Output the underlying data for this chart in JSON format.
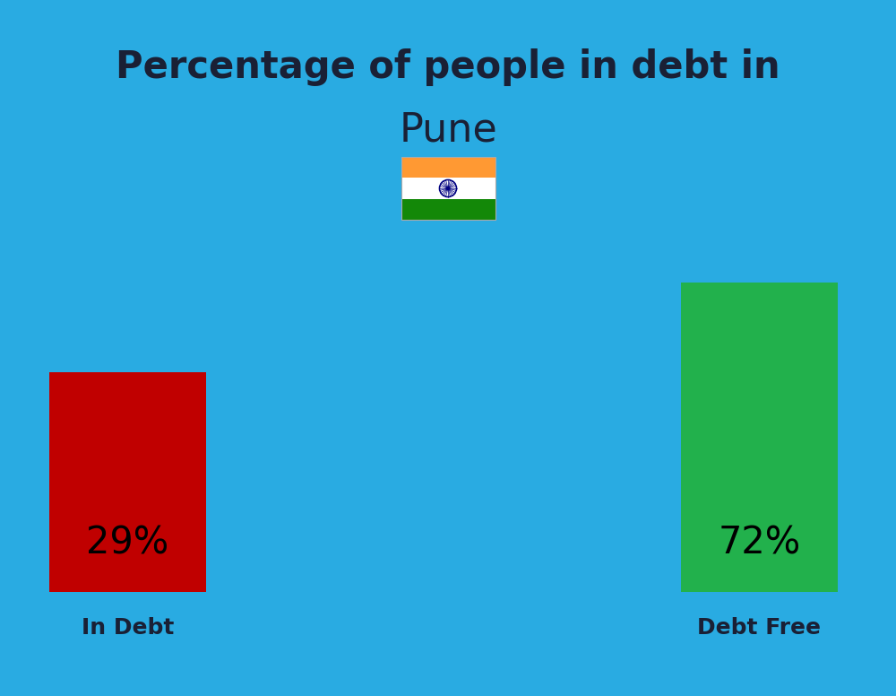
{
  "title_line1": "Percentage of people in debt in",
  "title_line2": "Pune",
  "background_color": "#29ABE2",
  "title_color": "#1a2035",
  "title1_fontsize": 30,
  "title2_fontsize": 32,
  "bar_left_value": "29%",
  "bar_right_value": "72%",
  "bar_left_label": "In Debt",
  "bar_right_label": "Debt Free",
  "bar_left_color": "#C00000",
  "bar_right_color": "#22B14C",
  "bar_label_color": "#000000",
  "bar_pct_fontsize": 30,
  "bar_cat_fontsize": 18,
  "flag_saffron": "#FF9933",
  "flag_white": "#FFFFFF",
  "flag_green": "#138808",
  "flag_chakra": "#000080"
}
